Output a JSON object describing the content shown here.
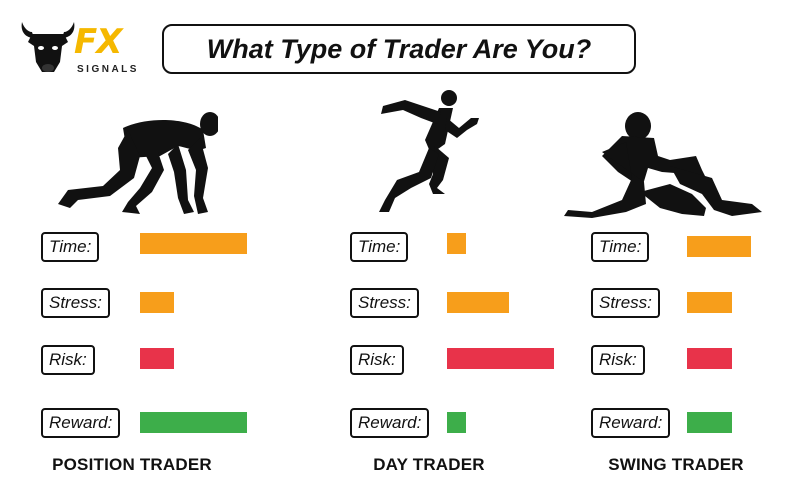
{
  "header": {
    "logo": {
      "brand_text": "FX",
      "sub_text": "SIGNALS",
      "brand_color": "#F5B800"
    },
    "title": "What Type of Trader Are You?"
  },
  "colors": {
    "time": "#F79E1B",
    "stress": "#F79E1B",
    "risk": "#E8334A",
    "reward": "#3DAE4A",
    "ink": "#111111"
  },
  "metric_labels": {
    "time": "Time:",
    "stress": "Stress:",
    "risk": "Risk:",
    "reward": "Reward:"
  },
  "traders": [
    {
      "name": "POSITION TRADER",
      "pose": "crouching-runner-icon",
      "levels": {
        "time": 1.0,
        "stress": 0.32,
        "risk": 0.32,
        "reward": 1.0
      }
    },
    {
      "name": "DAY TRADER",
      "pose": "sprinting-runner-icon",
      "levels": {
        "time": 0.18,
        "stress": 0.58,
        "risk": 1.0,
        "reward": 0.18
      }
    },
    {
      "name": "SWING TRADER",
      "pose": "sitting-person-icon",
      "levels": {
        "time": 0.6,
        "stress": 0.42,
        "risk": 0.42,
        "reward": 0.42
      }
    }
  ]
}
